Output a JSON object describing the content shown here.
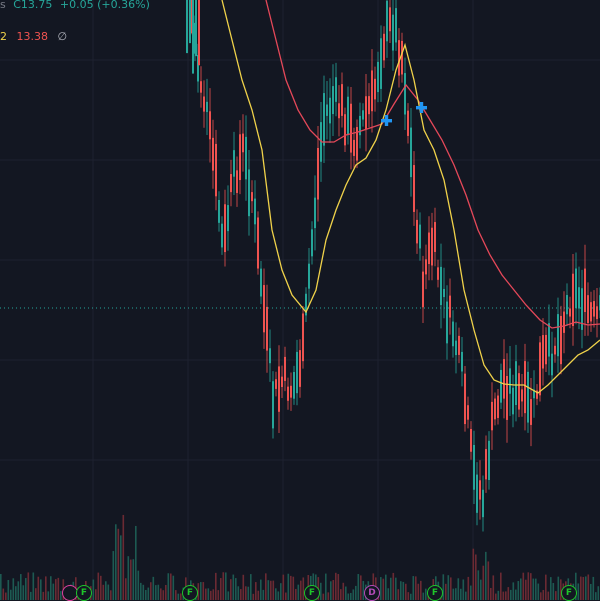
{
  "legend_top": {
    "cut_prefix": "s",
    "close_label": "C",
    "close_value": "13.75",
    "change": "+0.05 (+0.36%)"
  },
  "legend_ma": {
    "period_cut": "2",
    "value": "13.38",
    "empty_symbol": "∅"
  },
  "colors": {
    "background": "#131722",
    "up": "#26a69a",
    "down": "#ef5350",
    "ma_fast": "#f0d24a",
    "ma_slow": "#e54859",
    "marker": "#2196f3",
    "grid": "#1e2230"
  },
  "events": [
    {
      "label": "F",
      "kind": "f"
    },
    {
      "label": "F",
      "kind": "f"
    },
    {
      "label": "F",
      "kind": "f"
    },
    {
      "label": "F",
      "kind": "f"
    },
    {
      "label": "D",
      "kind": "d"
    },
    {
      "label": "F",
      "kind": "f"
    },
    {
      "label": "F",
      "kind": "f"
    },
    {
      "label": "",
      "kind": "p"
    }
  ]
}
